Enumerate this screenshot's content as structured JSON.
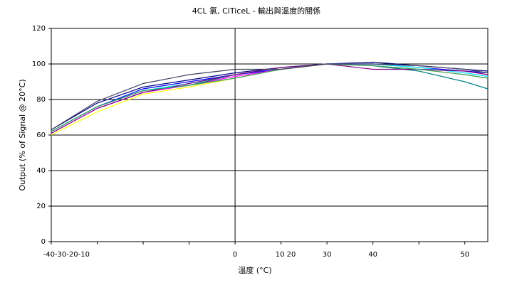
{
  "chart_data": {
    "type": "line",
    "title": "4CL 氯, CiTiceL - 輸出與溫度的關係",
    "y_label": "Output (% of Signal @ 20°C)",
    "x_label": "溫度 (°C)",
    "x": [
      -40,
      -30,
      -20,
      -10,
      0,
      10,
      20,
      30,
      40,
      50,
      55
    ],
    "series": [
      {
        "color": "#000080",
        "values": [
          63,
          78,
          87,
          91,
          95,
          98,
          100,
          101,
          99,
          97,
          96
        ]
      },
      {
        "color": "#0000ff",
        "values": [
          62,
          76,
          86,
          90,
          94,
          97,
          100,
          100,
          98,
          96,
          95
        ]
      },
      {
        "color": "#ff00ff",
        "values": [
          61,
          75,
          84,
          88,
          93,
          97,
          100,
          100,
          98,
          95,
          93
        ]
      },
      {
        "color": "#ffff00",
        "values": [
          60,
          73,
          83,
          87,
          92,
          97,
          100,
          99,
          97,
          94,
          92
        ]
      },
      {
        "color": "#00ffff",
        "values": [
          62,
          76,
          85,
          89,
          94,
          98,
          100,
          100,
          98,
          95,
          93
        ]
      },
      {
        "color": "#008080",
        "values": [
          62,
          76,
          85,
          88,
          94,
          98,
          100,
          99,
          96,
          90,
          86
        ]
      },
      {
        "color": "#800080",
        "values": [
          61,
          75,
          84,
          89,
          94,
          98,
          100,
          97,
          97,
          96,
          94
        ]
      },
      {
        "color": "#339966",
        "values": [
          62,
          76,
          85,
          88,
          92,
          97,
          100,
          99,
          97,
          94,
          92
        ]
      },
      {
        "color": "#404060",
        "values": [
          63,
          79,
          89,
          94,
          97,
          97,
          100,
          100,
          99,
          97,
          95
        ]
      }
    ],
    "xlim": [
      -40,
      55
    ],
    "ylim": [
      0,
      120
    ],
    "xticks": [
      -40,
      -30,
      -20,
      -10,
      0,
      10,
      20,
      30,
      40,
      50
    ],
    "xtick_labels": [
      {
        "value": -36.7,
        "label": "-40-30-20-10"
      },
      {
        "value": 0,
        "label": "0"
      },
      {
        "value": 11,
        "label": "10 20"
      },
      {
        "value": 20,
        "label": "30"
      },
      {
        "value": 30,
        "label": "40"
      },
      {
        "value": 50,
        "label": "50"
      }
    ],
    "yticks": [
      0,
      20,
      40,
      60,
      80,
      100,
      120
    ],
    "grid": true
  }
}
